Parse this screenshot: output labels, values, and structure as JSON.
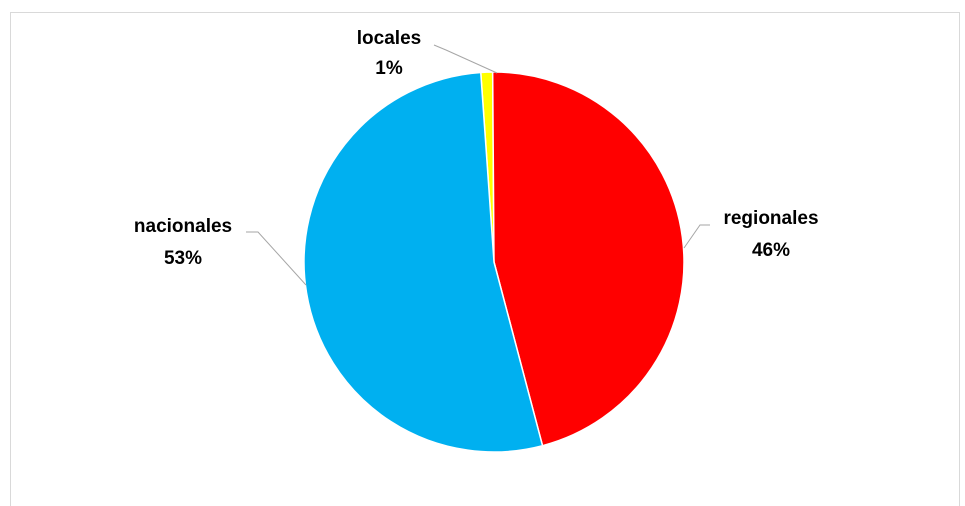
{
  "chart_data": {
    "type": "pie",
    "title": "",
    "slices": [
      {
        "label": "locales",
        "value": 1,
        "percent_label": "1%",
        "color": "#FFFF00"
      },
      {
        "label": "regionales",
        "value": 46,
        "percent_label": "46%",
        "color": "#FF0000"
      },
      {
        "label": "nacionales",
        "value": 53,
        "percent_label": "53%",
        "color": "#00B0F0"
      }
    ],
    "start_angle_deg": -4,
    "direction": "clockwise",
    "legend": "none",
    "data_labels": "outside-with-leader-lines"
  },
  "colors": {
    "slice_border": "#ffffff",
    "leader_line": "#a6a6a6",
    "frame_border": "#d9d9d9"
  }
}
